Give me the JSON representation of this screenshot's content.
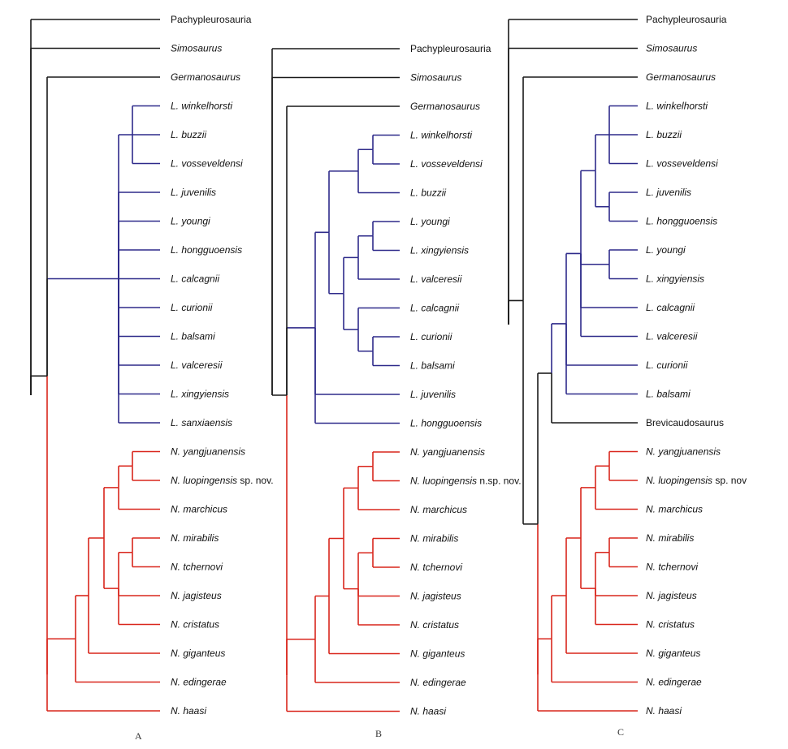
{
  "colors": {
    "black": "#1a1a1a",
    "blue": "#2e2a8a",
    "red": "#d9261c"
  },
  "panels": [
    {
      "label": "A",
      "taxa": [
        {
          "name": "Pachypleurosauria",
          "italic": false
        },
        {
          "name": "Simosaurus",
          "italic": true
        },
        {
          "name": "Germanosaurus",
          "italic": true
        },
        {
          "name": "L. winkelhorsti",
          "italic": true
        },
        {
          "name": "L. buzzii",
          "italic": true
        },
        {
          "name": "L. vosseveldensi",
          "italic": true
        },
        {
          "name": "L. juvenilis",
          "italic": true
        },
        {
          "name": "L. youngi",
          "italic": true
        },
        {
          "name": "L. hongguoensis",
          "italic": true
        },
        {
          "name": "L. calcagnii",
          "italic": true
        },
        {
          "name": "L. curionii",
          "italic": true
        },
        {
          "name": "L. balsami",
          "italic": true
        },
        {
          "name": "L. valceresii",
          "italic": true
        },
        {
          "name": "L. xingyiensis",
          "italic": true
        },
        {
          "name": "L. sanxiaensis",
          "italic": true
        },
        {
          "name": "N. yangjuanensis",
          "italic": true
        },
        {
          "name": "N. luopingensis",
          "italic": true,
          "suffix": "sp. nov."
        },
        {
          "name": "N. marchicus",
          "italic": true
        },
        {
          "name": "N. mirabilis",
          "italic": true
        },
        {
          "name": "N. tchernovi",
          "italic": true
        },
        {
          "name": "N. jagisteus",
          "italic": true
        },
        {
          "name": "N. cristatus",
          "italic": true
        },
        {
          "name": "N. giganteus",
          "italic": true
        },
        {
          "name": "N. edingerae",
          "italic": true
        },
        {
          "name": "N. haasi",
          "italic": true
        }
      ]
    },
    {
      "label": "B",
      "taxa": [
        {
          "name": "Pachypleurosauria",
          "italic": false
        },
        {
          "name": "Simosaurus",
          "italic": true
        },
        {
          "name": "Germanosaurus",
          "italic": true
        },
        {
          "name": "L. winkelhorsti",
          "italic": true
        },
        {
          "name": "L. vosseveldensi",
          "italic": true
        },
        {
          "name": "L. buzzii",
          "italic": true
        },
        {
          "name": "L. youngi",
          "italic": true
        },
        {
          "name": "L. xingyiensis",
          "italic": true
        },
        {
          "name": "L. valceresii",
          "italic": true
        },
        {
          "name": "L. calcagnii",
          "italic": true
        },
        {
          "name": "L. curionii",
          "italic": true
        },
        {
          "name": "L. balsami",
          "italic": true
        },
        {
          "name": "L. juvenilis",
          "italic": true
        },
        {
          "name": "L. hongguoensis",
          "italic": true
        },
        {
          "name": "N. yangjuanensis",
          "italic": true
        },
        {
          "name": "N. luopingensis",
          "italic": true,
          "suffix": "n.sp. nov."
        },
        {
          "name": "N. marchicus",
          "italic": true
        },
        {
          "name": "N. mirabilis",
          "italic": true
        },
        {
          "name": "N. tchernovi",
          "italic": true
        },
        {
          "name": "N. jagisteus",
          "italic": true
        },
        {
          "name": "N. cristatus",
          "italic": true
        },
        {
          "name": "N. giganteus",
          "italic": true
        },
        {
          "name": "N. edingerae",
          "italic": true
        },
        {
          "name": "N. haasi",
          "italic": true
        }
      ]
    },
    {
      "label": "C",
      "taxa": [
        {
          "name": "Pachypleurosauria",
          "italic": false
        },
        {
          "name": "Simosaurus",
          "italic": true
        },
        {
          "name": "Germanosaurus",
          "italic": true
        },
        {
          "name": "L. winkelhorsti",
          "italic": true
        },
        {
          "name": "L. buzzii",
          "italic": true
        },
        {
          "name": "L. vosseveldensi",
          "italic": true
        },
        {
          "name": "L. juvenilis",
          "italic": true
        },
        {
          "name": "L. hongguoensis",
          "italic": true
        },
        {
          "name": "L. youngi",
          "italic": true
        },
        {
          "name": "L. xingyiensis",
          "italic": true
        },
        {
          "name": "L. calcagnii",
          "italic": true
        },
        {
          "name": "L. valceresii",
          "italic": true
        },
        {
          "name": "L. curionii",
          "italic": true
        },
        {
          "name": "L. balsami",
          "italic": true
        },
        {
          "name": "Brevicaudosaurus",
          "italic": false
        },
        {
          "name": "N. yangjuanensis",
          "italic": true
        },
        {
          "name": "N. luopingensis",
          "italic": true,
          "suffix": "sp. nov"
        },
        {
          "name": "N. marchicus",
          "italic": true
        },
        {
          "name": "N. mirabilis",
          "italic": true
        },
        {
          "name": "N. tchernovi",
          "italic": true
        },
        {
          "name": "N. jagisteus",
          "italic": true
        },
        {
          "name": "N. cristatus",
          "italic": true
        },
        {
          "name": "N. giganteus",
          "italic": true
        },
        {
          "name": "N. edingerae",
          "italic": true
        },
        {
          "name": "N. haasi",
          "italic": true
        }
      ]
    }
  ]
}
